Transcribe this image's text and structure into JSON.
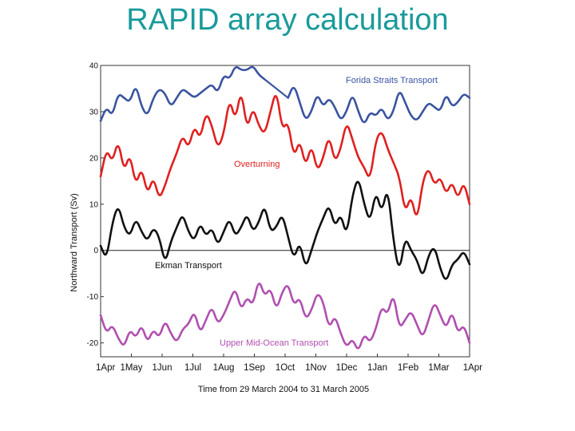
{
  "slide": {
    "title": "RAPID array calculation"
  },
  "chart_data": {
    "type": "line",
    "title": "RAPID array calculation",
    "xlabel": "Time from 29 March 2004 to 31 March 2005",
    "ylabel": "Northward Transport (Sv)",
    "ylim": [
      -23,
      40
    ],
    "yticks": [
      40,
      30,
      20,
      10,
      0,
      -10,
      -20
    ],
    "xticks": [
      "1Apr",
      "1May",
      "1Jun",
      "1Jul",
      "1Aug",
      "1Sep",
      "1Oct",
      "1Nov",
      "1Dec",
      "1Jan",
      "1Feb",
      "1Mar",
      "1Apr"
    ],
    "zero_line": true,
    "grid": false,
    "series": [
      {
        "name": "Forida Straits Transport",
        "color": "#3a54a0",
        "values": [
          28,
          31,
          29,
          34,
          33,
          32,
          36,
          31,
          29,
          33,
          35,
          34,
          31,
          33,
          35,
          34,
          33,
          34,
          35,
          36,
          34,
          38,
          37,
          40,
          39,
          39,
          40,
          38,
          37,
          35,
          34,
          34,
          33,
          36,
          32,
          28,
          30,
          34,
          31,
          33,
          31,
          28,
          30,
          34,
          30,
          27,
          30,
          29,
          31,
          28,
          30,
          35,
          32,
          29,
          28,
          30,
          32,
          31,
          30,
          34,
          31,
          32,
          34,
          33
        ],
        "gap": [
          28,
          32
        ]
      },
      {
        "name": "Overturning",
        "color": "#e02020",
        "values": [
          16,
          22,
          19,
          24,
          17,
          21,
          14,
          18,
          12,
          16,
          11,
          14,
          18,
          21,
          25,
          22,
          27,
          24,
          30,
          27,
          22,
          25,
          33,
          28,
          35,
          26,
          31,
          27,
          25,
          30,
          35,
          26,
          28,
          20,
          24,
          18,
          23,
          17,
          20,
          25,
          19,
          22,
          28,
          24,
          20,
          18,
          15,
          24,
          26,
          22,
          19,
          16,
          8,
          12,
          6,
          15,
          18,
          14,
          16,
          12,
          15,
          11,
          15,
          10
        ]
      },
      {
        "name": "Ekman Transport",
        "color": "#111111",
        "values": [
          1,
          -2,
          6,
          10,
          5,
          3,
          7,
          4,
          2,
          5,
          3,
          -3,
          2,
          5,
          8,
          4,
          2,
          6,
          3,
          5,
          1,
          4,
          7,
          3,
          5,
          8,
          4,
          6,
          10,
          4,
          5,
          8,
          3,
          -2,
          2,
          -4,
          0,
          4,
          7,
          10,
          5,
          8,
          3,
          12,
          16,
          10,
          6,
          13,
          8,
          14,
          2,
          -5,
          3,
          0,
          -2,
          -6,
          -1,
          1,
          -4,
          -7,
          -3,
          -2,
          0,
          -3
        ]
      },
      {
        "name": "Upper Mid-Ocean Transport",
        "color": "#b04fb0",
        "values": [
          -14,
          -18,
          -16,
          -19,
          -21,
          -17,
          -19,
          -16,
          -20,
          -17,
          -19,
          -15,
          -18,
          -20,
          -17,
          -16,
          -13,
          -18,
          -15,
          -12,
          -16,
          -14,
          -11,
          -8,
          -13,
          -10,
          -12,
          -6,
          -10,
          -8,
          -13,
          -9,
          -7,
          -12,
          -10,
          -15,
          -13,
          -9,
          -11,
          -17,
          -14,
          -18,
          -21,
          -19,
          -22,
          -18,
          -20,
          -17,
          -12,
          -14,
          -9,
          -17,
          -15,
          -13,
          -16,
          -19,
          -15,
          -11,
          -14,
          -17,
          -13,
          -18,
          -16,
          -20
        ]
      }
    ]
  }
}
